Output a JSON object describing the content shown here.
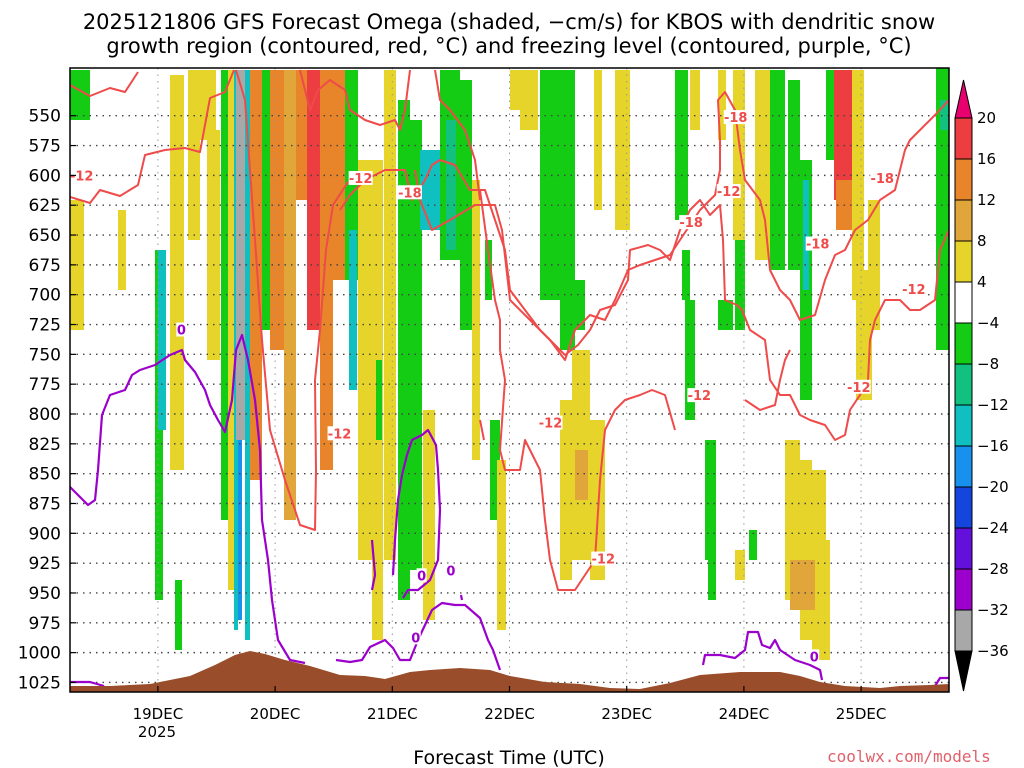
{
  "title_line1": "2025121806 GFS Forecast Omega (shaded, −cm/s) for KBOS with dendritic snow",
  "title_line2": "growth region (contoured, red, °C) and freezing level (contoured, purple, °C)",
  "xlabel": "Forecast Time (UTC)",
  "credit": "coolwx.com/models",
  "year_label": "2025",
  "colors": {
    "frame": "#000000",
    "terrain": "#9a4d2a",
    "dgz": "#ef4b4b",
    "freezing": "#9b00cc",
    "grid": "#444444"
  },
  "chart_data": {
    "type": "heatmap",
    "x_axis": {
      "type": "time",
      "ticks": [
        "19DEC",
        "20DEC",
        "21DEC",
        "22DEC",
        "23DEC",
        "24DEC",
        "25DEC"
      ],
      "range_days": [
        18.25,
        25.75
      ]
    },
    "y_axis": {
      "ticks": [
        550,
        575,
        600,
        625,
        650,
        675,
        700,
        725,
        750,
        775,
        800,
        825,
        850,
        875,
        900,
        925,
        950,
        975,
        1000,
        1025
      ],
      "range_hpa": [
        510,
        1033
      ]
    },
    "colorbar": {
      "ticks": [
        "20",
        "16",
        "12",
        "8",
        "4",
        "−4",
        "−8",
        "−12",
        "−16",
        "−20",
        "−24",
        "−28",
        "−32",
        "−36"
      ],
      "bands": [
        {
          "from": 16,
          "to": 20,
          "color": "#ec3d40"
        },
        {
          "from": 12,
          "to": 16,
          "color": "#e8842a"
        },
        {
          "from": 8,
          "to": 12,
          "color": "#e0a63a"
        },
        {
          "from": 4,
          "to": 8,
          "color": "#e6d42a"
        },
        {
          "from": -4,
          "to": 4,
          "color": "#ffffff"
        },
        {
          "from": -8,
          "to": -4,
          "color": "#15cc15"
        },
        {
          "from": -12,
          "to": -8,
          "color": "#12c080"
        },
        {
          "from": -16,
          "to": -12,
          "color": "#10c0c0"
        },
        {
          "from": -20,
          "to": -16,
          "color": "#1890ee"
        },
        {
          "from": -24,
          "to": -20,
          "color": "#1446dd"
        },
        {
          "from": -28,
          "to": -24,
          "color": "#6410dc"
        },
        {
          "from": -32,
          "to": -28,
          "color": "#9b00cc"
        },
        {
          "from": -36,
          "to": -32,
          "color": "#a8a8a8"
        }
      ],
      "top_arrow_color": "#e8006e",
      "bottom_arrow_color": "#000000"
    },
    "dgz_contour_labels": [
      {
        "text": "-12",
        "day": 18.35,
        "hpa": 601
      },
      {
        "text": "-12",
        "day": 20.55,
        "hpa": 817
      },
      {
        "text": "-12",
        "day": 20.73,
        "hpa": 603
      },
      {
        "text": "-18",
        "day": 21.15,
        "hpa": 615
      },
      {
        "text": "-12",
        "day": 22.35,
        "hpa": 808
      },
      {
        "text": "-12",
        "day": 22.8,
        "hpa": 922
      },
      {
        "text": "-18",
        "day": 23.55,
        "hpa": 640
      },
      {
        "text": "-12",
        "day": 23.62,
        "hpa": 785
      },
      {
        "text": "-12",
        "day": 23.87,
        "hpa": 614
      },
      {
        "text": "-18",
        "day": 23.93,
        "hpa": 552
      },
      {
        "text": "-18",
        "day": 24.63,
        "hpa": 658
      },
      {
        "text": "-12",
        "day": 24.98,
        "hpa": 778
      },
      {
        "text": "-18",
        "day": 25.18,
        "hpa": 603
      },
      {
        "text": "-12",
        "day": 25.45,
        "hpa": 696
      }
    ],
    "freezing_contour_labels": [
      {
        "text": "0",
        "day": 19.2,
        "hpa": 730
      },
      {
        "text": "0",
        "day": 21.25,
        "hpa": 936
      },
      {
        "text": "0",
        "day": 21.5,
        "hpa": 932
      },
      {
        "text": "0",
        "day": 21.2,
        "hpa": 988
      },
      {
        "text": "0",
        "day": 24.6,
        "hpa": 1004
      }
    ]
  }
}
